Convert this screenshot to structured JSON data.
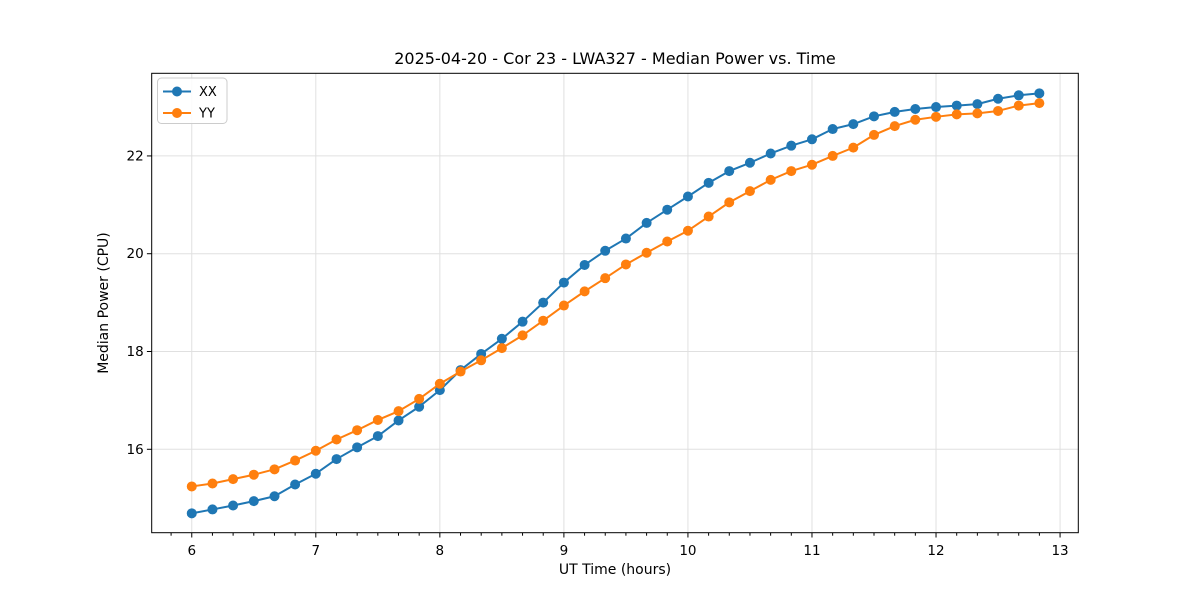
{
  "chart_data": {
    "type": "line",
    "title": "2025-04-20 - Cor 23 - LWA327 - Median Power vs. Time",
    "xlabel": "UT Time (hours)",
    "ylabel": "Median Power (CPU)",
    "xlim": [
      5.677,
      13.147
    ],
    "ylim": [
      14.294,
      23.69
    ],
    "xticks": [
      6,
      7,
      8,
      9,
      10,
      11,
      12,
      13
    ],
    "yticks": [
      16,
      18,
      20,
      22
    ],
    "x_minor_per_major": 6,
    "grid": true,
    "legend_position": "upper-left",
    "x": [
      6.0,
      6.167,
      6.333,
      6.5,
      6.667,
      6.833,
      7.0,
      7.167,
      7.333,
      7.5,
      7.667,
      7.833,
      8.0,
      8.167,
      8.333,
      8.5,
      8.667,
      8.833,
      9.0,
      9.167,
      9.333,
      9.5,
      9.667,
      9.833,
      10.0,
      10.167,
      10.333,
      10.5,
      10.667,
      10.833,
      11.0,
      11.167,
      11.333,
      11.5,
      11.667,
      11.833,
      12.0,
      12.167,
      12.333,
      12.5,
      12.667,
      12.833
    ],
    "series": [
      {
        "name": "XX",
        "color": "#1f77b4",
        "values": [
          14.69,
          14.77,
          14.85,
          14.94,
          15.04,
          15.28,
          15.5,
          15.8,
          16.04,
          16.27,
          16.59,
          16.87,
          17.21,
          17.62,
          17.95,
          18.26,
          18.61,
          19.0,
          19.41,
          19.77,
          20.06,
          20.31,
          20.63,
          20.9,
          21.17,
          21.45,
          21.69,
          21.86,
          22.05,
          22.21,
          22.34,
          22.55,
          22.65,
          22.81,
          22.9,
          22.96,
          23.0,
          23.03,
          23.06,
          23.17,
          23.24,
          23.28
        ]
      },
      {
        "name": "YY",
        "color": "#ff7f0e",
        "values": [
          15.24,
          15.3,
          15.39,
          15.48,
          15.59,
          15.77,
          15.97,
          16.2,
          16.39,
          16.6,
          16.78,
          17.03,
          17.34,
          17.59,
          17.82,
          18.07,
          18.33,
          18.63,
          18.94,
          19.23,
          19.5,
          19.78,
          20.02,
          20.25,
          20.47,
          20.76,
          21.05,
          21.28,
          21.51,
          21.69,
          21.82,
          22.0,
          22.17,
          22.43,
          22.61,
          22.74,
          22.8,
          22.85,
          22.87,
          22.92,
          23.03,
          23.08
        ]
      }
    ]
  }
}
